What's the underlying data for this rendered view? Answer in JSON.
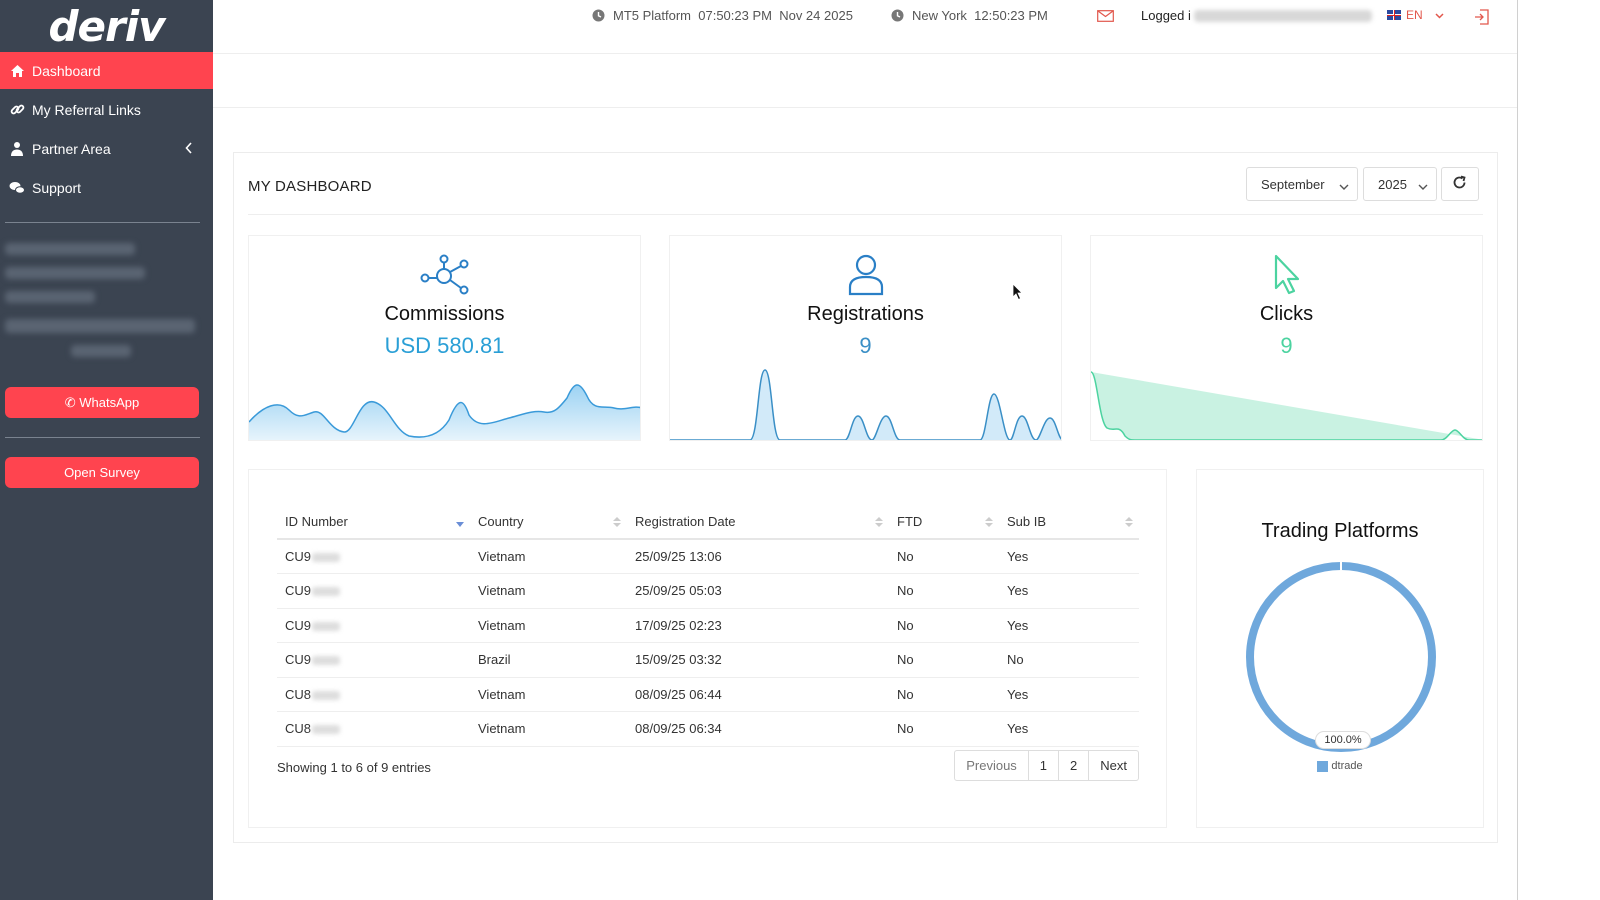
{
  "brand": "deriv",
  "colors": {
    "sidebar_bg": "#3b4451",
    "accent_red": "#ff444f",
    "commission_blue": "#2a9fd6",
    "registration_blue": "#3a8fc6",
    "clicks_green": "#4cd3a0",
    "donut_blue": "#6fa8dc"
  },
  "sidebar": {
    "items": [
      {
        "label": "Dashboard",
        "icon": "home-icon",
        "active": true
      },
      {
        "label": "My Referral Links",
        "icon": "link-icon"
      },
      {
        "label": "Partner Area",
        "icon": "user-tie-icon"
      },
      {
        "label": "Support",
        "icon": "chat-icon"
      }
    ],
    "whatsapp_label": "WhatsApp",
    "survey_label": "Open Survey"
  },
  "topbar": {
    "mt5_label": "MT5 Platform",
    "mt5_time": "07:50:23 PM",
    "mt5_date": "Nov 24 2025",
    "ny_label": "New York",
    "ny_time": "12:50:23 PM",
    "logged_label": "Logged i",
    "lang": "EN"
  },
  "dashboard": {
    "title": "MY DASHBOARD",
    "month": "September",
    "year": "2025"
  },
  "cards": {
    "commissions": {
      "title": "Commissions",
      "value": "USD 580.81"
    },
    "registrations": {
      "title": "Registrations",
      "value": "9"
    },
    "clicks": {
      "title": "Clicks",
      "value": "9"
    }
  },
  "table": {
    "headers": [
      "ID Number",
      "Country",
      "Registration Date",
      "FTD",
      "Sub IB"
    ],
    "rows": [
      {
        "id": "CU9",
        "country": "Vietnam",
        "date": "25/09/25 13:06",
        "ftd": "No",
        "subib": "Yes"
      },
      {
        "id": "CU9",
        "country": "Vietnam",
        "date": "25/09/25 05:03",
        "ftd": "No",
        "subib": "Yes"
      },
      {
        "id": "CU9",
        "country": "Vietnam",
        "date": "17/09/25 02:23",
        "ftd": "No",
        "subib": "Yes"
      },
      {
        "id": "CU9",
        "country": "Brazil",
        "date": "15/09/25 03:32",
        "ftd": "No",
        "subib": "No"
      },
      {
        "id": "CU8",
        "country": "Vietnam",
        "date": "08/09/25 06:44",
        "ftd": "No",
        "subib": "Yes"
      },
      {
        "id": "CU8",
        "country": "Vietnam",
        "date": "08/09/25 06:34",
        "ftd": "No",
        "subib": "Yes"
      }
    ],
    "showing": "Showing 1 to 6 of 9 entries",
    "pager": {
      "previous": "Previous",
      "page1": "1",
      "page2": "2",
      "next": "Next"
    }
  },
  "platforms": {
    "title": "Trading Platforms",
    "percent_label": "100.0%",
    "legend": "dtrade",
    "share": 1.0
  }
}
